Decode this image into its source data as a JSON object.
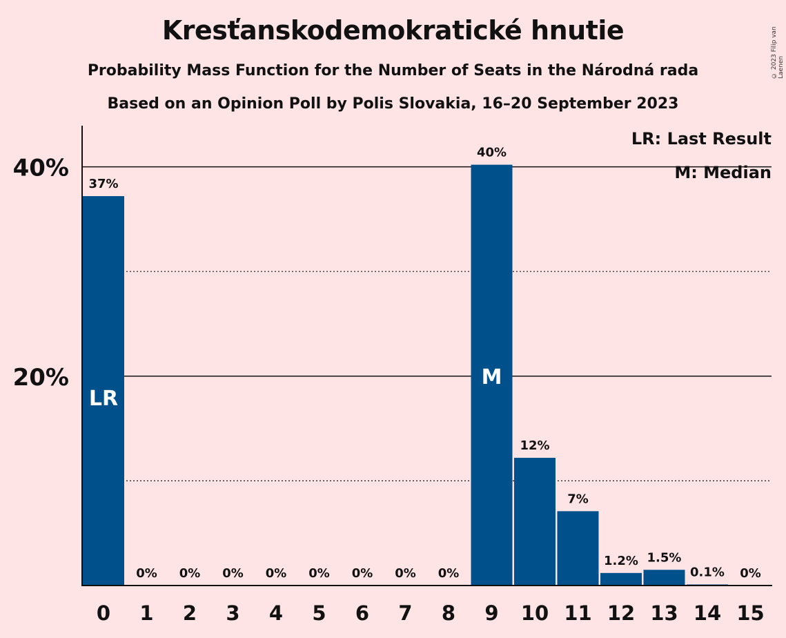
{
  "title": "Kresťanskodemokratické hnutie",
  "subtitle": "Probability Mass Function for the Number of Seats in the Národná rada",
  "subtitle2": "Based on an Opinion Poll by Polis Slovakia, 16–20 September 2023",
  "copyright": "© 2023 Filip van Laenen",
  "legend": {
    "last_result": "LR: Last Result",
    "median": "M: Median"
  },
  "colors": {
    "bar": "#00508C",
    "background": "#FFE4E6"
  },
  "chart_data": {
    "type": "bar",
    "categories": [
      "0",
      "1",
      "2",
      "3",
      "4",
      "5",
      "6",
      "7",
      "8",
      "9",
      "10",
      "11",
      "12",
      "13",
      "14",
      "15"
    ],
    "values": [
      37.2,
      0,
      0,
      0,
      0,
      0,
      0,
      0,
      0,
      40.2,
      12.2,
      7.1,
      1.2,
      1.5,
      0.1,
      0
    ],
    "value_labels": [
      "37%",
      "0%",
      "0%",
      "0%",
      "0%",
      "0%",
      "0%",
      "0%",
      "0%",
      "40%",
      "12%",
      "7%",
      "1.2%",
      "1.5%",
      "0.1%",
      "0%"
    ],
    "bar_markers": {
      "0": "LR",
      "9": "M"
    },
    "y_ticks": [
      20,
      40
    ],
    "y_tick_labels": [
      "20%",
      "40%"
    ],
    "y_minor_gridlines": [
      10,
      30
    ],
    "ylim": [
      0,
      44
    ],
    "grid": true,
    "legend_position": "top-right"
  }
}
